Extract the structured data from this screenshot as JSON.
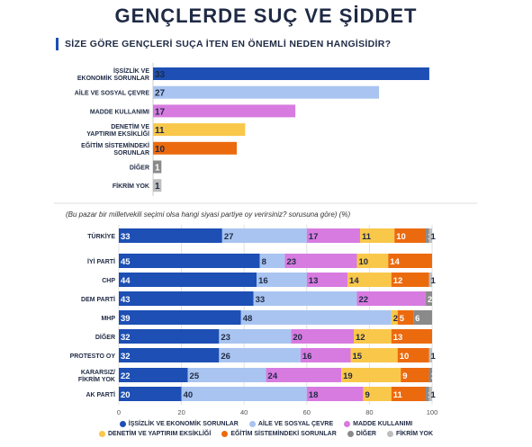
{
  "title": "GENÇLERDE SUÇ VE ŞİDDET",
  "subtitle": "SİZE GÖRE GENÇLERİ SUÇA İTEN EN ÖNEMLİ NEDEN HANGİSİDİR?",
  "note": "(Bu pazar bir milletvekili seçimi olsa hangi siyasi partiye oy verirsiniz? sorusuna göre) (%)",
  "colors": [
    "#1d4fb4",
    "#a9c4f0",
    "#d77be0",
    "#f9c84a",
    "#ec6a0e",
    "#8a8a8a",
    "#bdbdbd"
  ],
  "chart_data": [
    {
      "type": "bar",
      "orientation": "horizontal",
      "categories": [
        "İŞSİZLİK VE EKONOMİK SORUNLAR",
        "AİLE VE SOSYAL ÇEVRE",
        "MADDE KULLANIMI",
        "DENETİM VE YAPTIRIM EKSİKLİĞİ",
        "EĞİTİM SİSTEMİNDEKİ SORUNLAR",
        "DİĞER",
        "FİKRİM YOK"
      ],
      "values": [
        33,
        27,
        17,
        11,
        10,
        1,
        1
      ],
      "title": "SİZE GÖRE GENÇLERİ SUÇA İTEN EN ÖNEMLİ NEDEN HANGİSİDİR?"
    },
    {
      "type": "bar",
      "orientation": "horizontal",
      "stacked": true,
      "title": "(Bu pazar bir milletvekili seçimi olsa hangi siyasi partiye oy verirsiniz? sorusuna göre) (%)",
      "categories": [
        "TÜRKİYE",
        "İYİ PARTİ",
        "CHP",
        "DEM PARTİ",
        "MHP",
        "DİĞER",
        "PROTESTO OY",
        "KARARSIZ/ FİKRİM YOK",
        "AK PARTİ"
      ],
      "xlim": [
        0,
        100
      ],
      "xticks": [
        0,
        20,
        40,
        60,
        80,
        100
      ],
      "series": [
        {
          "name": "İŞSİZLİK VE EKONOMİK SORUNLAR",
          "values": [
            33,
            45,
            44,
            43,
            39,
            32,
            32,
            22,
            20
          ]
        },
        {
          "name": "AİLE VE SOSYAL ÇEVRE",
          "values": [
            27,
            8,
            16,
            33,
            48,
            23,
            26,
            25,
            40
          ]
        },
        {
          "name": "MADDE KULLANIMI",
          "values": [
            17,
            23,
            13,
            22,
            0,
            20,
            16,
            24,
            18
          ]
        },
        {
          "name": "DENETİM VE YAPTIRIM EKSİKLİĞİ",
          "values": [
            11,
            10,
            14,
            0,
            2,
            12,
            15,
            19,
            9
          ]
        },
        {
          "name": "EĞİTİM SİSTEMİNDEKİ SORUNLAR",
          "values": [
            10,
            14,
            12,
            0,
            5,
            13,
            10,
            9,
            11
          ]
        },
        {
          "name": "DİĞER",
          "values": [
            1,
            0,
            0,
            2,
            6,
            0,
            0,
            1,
            1
          ]
        },
        {
          "name": "FİKRİM YOK",
          "values": [
            1,
            0,
            1,
            0,
            0,
            0,
            1,
            0,
            1
          ]
        }
      ],
      "legend_position": "bottom"
    }
  ]
}
